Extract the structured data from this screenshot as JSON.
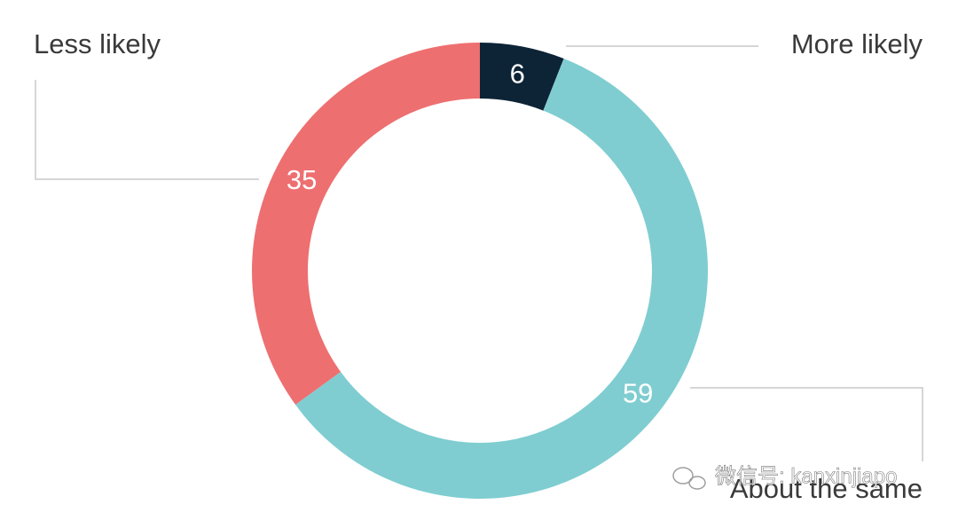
{
  "chart_data": {
    "type": "pie",
    "donut": true,
    "categories": [
      "More likely",
      "About the same",
      "Less likely"
    ],
    "values": [
      6,
      59,
      35
    ],
    "colors": [
      "#0d2436",
      "#7fcdd1",
      "#ee6f70"
    ]
  },
  "watermark": "微信号: kanxinjiapo"
}
